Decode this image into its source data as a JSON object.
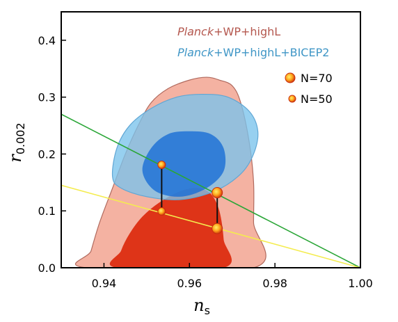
{
  "chart_data": {
    "type": "contour",
    "xlabel": "n",
    "xlabel_sub": "s",
    "ylabel": "r",
    "ylabel_sub": "0.002",
    "xlim": [
      0.93,
      1.0
    ],
    "ylim": [
      0.0,
      0.45
    ],
    "x_ticks": [
      0.94,
      0.96,
      0.98,
      1.0
    ],
    "x_tick_labels": [
      "0.94",
      "0.96",
      "0.98",
      "1.00"
    ],
    "y_ticks": [
      0.0,
      0.1,
      0.2,
      0.3,
      0.4
    ],
    "y_tick_labels": [
      "0.0",
      "0.1",
      "0.2",
      "0.3",
      "0.4"
    ],
    "legend": [
      {
        "italic": "Planck",
        "text": "+WP+highL",
        "color": "#b4574e"
      },
      {
        "italic": "Planck",
        "text": "+WP+highL+BICEP2",
        "color": "#3f96c6"
      }
    ],
    "marker_legend": [
      {
        "label": "N=70",
        "size": "large"
      },
      {
        "label": "N=50",
        "size": "small"
      }
    ],
    "series": [
      {
        "fill_outer": "#f4b2a2",
        "fill_inner": "#de3418",
        "stroke": "#b06a5e",
        "outer": [
          [
            0.936,
            0.0
          ],
          [
            0.937,
            0.03
          ],
          [
            0.939,
            0.08
          ],
          [
            0.942,
            0.14
          ],
          [
            0.945,
            0.2
          ],
          [
            0.948,
            0.25
          ],
          [
            0.951,
            0.29
          ],
          [
            0.955,
            0.315
          ],
          [
            0.96,
            0.33
          ],
          [
            0.964,
            0.335
          ],
          [
            0.967,
            0.33
          ],
          [
            0.97,
            0.32
          ],
          [
            0.972,
            0.29
          ],
          [
            0.974,
            0.22
          ],
          [
            0.975,
            0.15
          ],
          [
            0.975,
            0.08
          ],
          [
            0.975,
            0.0
          ]
        ],
        "inner": [
          [
            0.943,
            0.0
          ],
          [
            0.944,
            0.03
          ],
          [
            0.946,
            0.06
          ],
          [
            0.949,
            0.09
          ],
          [
            0.953,
            0.115
          ],
          [
            0.958,
            0.135
          ],
          [
            0.962,
            0.14
          ],
          [
            0.965,
            0.13
          ],
          [
            0.967,
            0.1
          ],
          [
            0.968,
            0.05
          ],
          [
            0.968,
            0.0
          ]
        ]
      },
      {
        "fill_outer": "#7ac3ec",
        "fill_inner": "#1c6fd6",
        "stroke": "#5fa6d4",
        "outer": [
          [
            0.942,
            0.16
          ],
          [
            0.943,
            0.21
          ],
          [
            0.946,
            0.25
          ],
          [
            0.951,
            0.28
          ],
          [
            0.957,
            0.3
          ],
          [
            0.963,
            0.305
          ],
          [
            0.969,
            0.3
          ],
          [
            0.974,
            0.275
          ],
          [
            0.976,
            0.24
          ],
          [
            0.975,
            0.2
          ],
          [
            0.972,
            0.165
          ],
          [
            0.966,
            0.135
          ],
          [
            0.958,
            0.12
          ],
          [
            0.95,
            0.125
          ],
          [
            0.944,
            0.14
          ]
        ],
        "inner": [
          [
            0.949,
            0.17
          ],
          [
            0.951,
            0.21
          ],
          [
            0.955,
            0.235
          ],
          [
            0.96,
            0.24
          ],
          [
            0.965,
            0.235
          ],
          [
            0.968,
            0.21
          ],
          [
            0.968,
            0.17
          ],
          [
            0.964,
            0.14
          ],
          [
            0.958,
            0.125
          ],
          [
            0.952,
            0.135
          ]
        ]
      }
    ],
    "lines": [
      {
        "name": "green-line",
        "color": "#2aa637",
        "x": [
          0.93,
          1.0
        ],
        "y": [
          0.27,
          0.0
        ]
      },
      {
        "name": "yellow-line",
        "color": "#f4ec4f",
        "x": [
          0.93,
          1.0
        ],
        "y": [
          0.145,
          0.0
        ]
      }
    ],
    "points": [
      {
        "x": 0.9535,
        "y": 0.181,
        "n": "50"
      },
      {
        "x": 0.9535,
        "y": 0.099,
        "n": "50"
      },
      {
        "x": 0.9665,
        "y": 0.132,
        "n": "70"
      },
      {
        "x": 0.9665,
        "y": 0.069,
        "n": "70"
      }
    ],
    "connectors": [
      [
        0,
        1
      ],
      [
        2,
        3
      ]
    ]
  }
}
